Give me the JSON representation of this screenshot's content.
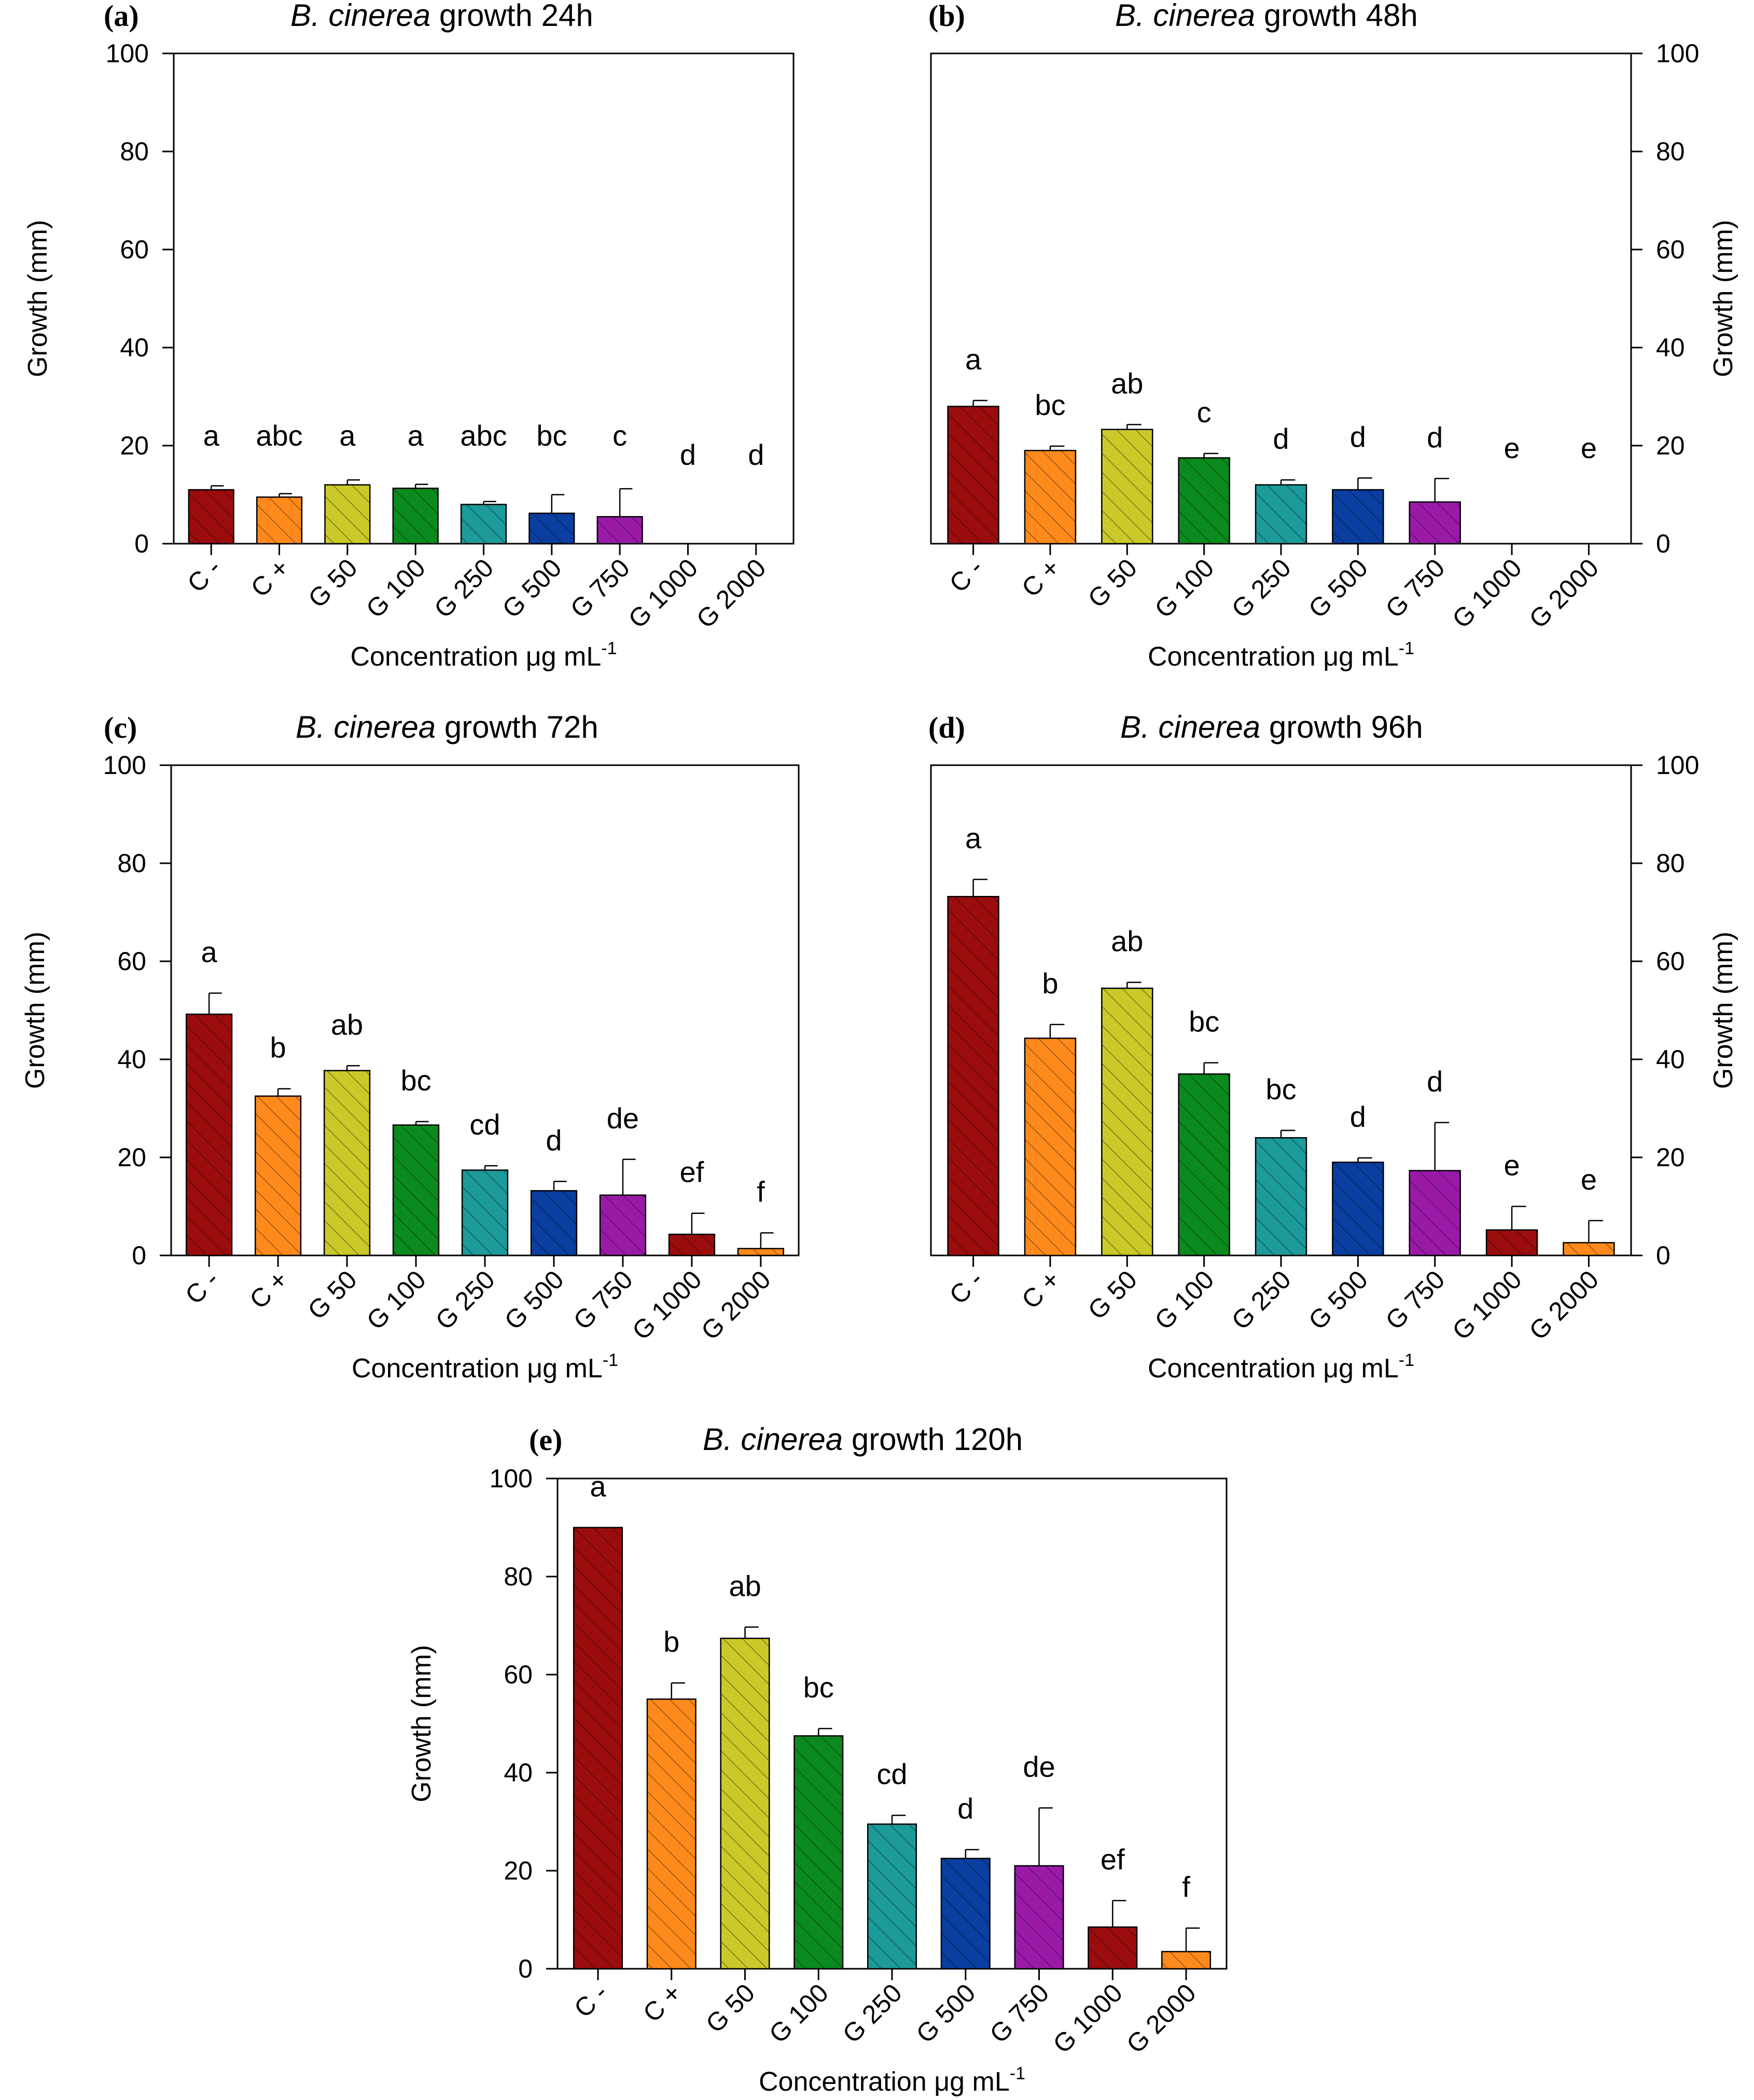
{
  "figure": {
    "caption": ""
  },
  "colors": {
    "C-": "#9b0d0d",
    "C+": "#ff8a1c",
    "G 50": "#c9c92a",
    "G 100": "#0b8a1e",
    "G 250": "#1d9a9a",
    "G 500": "#0a3ea0",
    "G 750": "#9a1aa8",
    "G 1000": "#9b0d0d",
    "G 2000": "#ff8a1c"
  },
  "chart_data": [
    {
      "id": "a",
      "type": "bar",
      "panel_label": "(a)",
      "title_italic": "B. cinerea",
      "title_rest": " growth 24h",
      "xlabel": "Concentration μg mL",
      "xlabel_sup": "-1",
      "ylabel": "Growth (mm)",
      "ylabel_side": "left",
      "ylim": [
        0,
        100
      ],
      "yticks": [
        0,
        20,
        40,
        60,
        80,
        100
      ],
      "categories": [
        "C -",
        "C +",
        "G 50",
        "G 100",
        "G 250",
        "G 500",
        "G 750",
        "G 1000",
        "G 2000"
      ],
      "values": [
        11,
        9.5,
        12,
        11.3,
        8,
        6.2,
        5.5,
        0,
        0
      ],
      "errors": [
        0.8,
        0.7,
        1.0,
        0.8,
        0.6,
        3.8,
        5.7,
        0,
        0
      ],
      "letters": [
        "a",
        "abc",
        "a",
        "a",
        "abc",
        "bc",
        "c",
        "d",
        "d"
      ]
    },
    {
      "id": "b",
      "type": "bar",
      "panel_label": "(b)",
      "title_italic": "B. cinerea",
      "title_rest": " growth 48h",
      "xlabel": "Concentration μg mL",
      "xlabel_sup": "-1",
      "ylabel": "Growth (mm)",
      "ylabel_side": "right",
      "ylim": [
        0,
        100
      ],
      "yticks": [
        0,
        20,
        40,
        60,
        80,
        100
      ],
      "categories": [
        "C -",
        "C +",
        "G 50",
        "G 100",
        "G 250",
        "G 500",
        "G 750",
        "G 1000",
        "G 2000"
      ],
      "values": [
        28,
        19,
        23.3,
        17.5,
        12,
        11,
        8.5,
        0,
        0
      ],
      "errors": [
        1.2,
        0.9,
        1.0,
        0.9,
        1.0,
        2.4,
        4.8,
        0,
        0
      ],
      "letters": [
        "a",
        "bc",
        "ab",
        "c",
        "d",
        "d",
        "d",
        "e",
        "e"
      ]
    },
    {
      "id": "c",
      "type": "bar",
      "panel_label": "(c)",
      "title_italic": "B. cinerea",
      "title_rest": " growth 72h",
      "xlabel": "Concentration μg mL",
      "xlabel_sup": "-1",
      "ylabel": "Growth (mm)",
      "ylabel_side": "left",
      "ylim": [
        0,
        100
      ],
      "yticks": [
        0,
        20,
        40,
        60,
        80,
        100
      ],
      "categories": [
        "C -",
        "C +",
        "G 50",
        "G 100",
        "G 250",
        "G 500",
        "G 750",
        "G 1000",
        "G 2000"
      ],
      "values": [
        49.2,
        32.5,
        37.7,
        26.6,
        17.4,
        13.2,
        12.3,
        4.3,
        1.4
      ],
      "errors": [
        4.3,
        1.5,
        1.0,
        0.7,
        0.9,
        1.9,
        7.3,
        4.3,
        3.2
      ],
      "letters": [
        "a",
        "b",
        "ab",
        "bc",
        "cd",
        "d",
        "de",
        "ef",
        "f"
      ]
    },
    {
      "id": "d",
      "type": "bar",
      "panel_label": "(d)",
      "title_italic": "B. cinerea",
      "title_rest": " growth 96h",
      "xlabel": "Concentration μg mL",
      "xlabel_sup": "-1",
      "ylabel": "Growth (mm)",
      "ylabel_side": "right",
      "ylim": [
        0,
        100
      ],
      "yticks": [
        0,
        20,
        40,
        60,
        80,
        100
      ],
      "categories": [
        "C -",
        "C +",
        "G 50",
        "G 100",
        "G 250",
        "G 500",
        "G 750",
        "G 1000",
        "G 2000"
      ],
      "values": [
        73.2,
        44.3,
        54.5,
        37,
        24,
        19,
        17.3,
        5.2,
        2.6
      ],
      "errors": [
        3.5,
        2.8,
        1.2,
        2.3,
        1.5,
        0.9,
        9.8,
        4.8,
        4.5
      ],
      "letters": [
        "a",
        "b",
        "ab",
        "bc",
        "bc",
        "d",
        "d",
        "e",
        "e"
      ]
    },
    {
      "id": "e",
      "type": "bar",
      "panel_label": "(e)",
      "title_italic": "B. cinerea",
      "title_rest": " growth 120h",
      "xlabel": "Concentration μg mL",
      "xlabel_sup": "-1",
      "ylabel": "Growth (mm)",
      "ylabel_side": "left",
      "ylim": [
        0,
        100
      ],
      "yticks": [
        0,
        20,
        40,
        60,
        80,
        100
      ],
      "categories": [
        "C -",
        "C +",
        "G 50",
        "G 100",
        "G 250",
        "G 500",
        "G 750",
        "G 1000",
        "G 2000"
      ],
      "values": [
        90,
        55,
        67.4,
        47.5,
        29.5,
        22.5,
        21,
        8.5,
        3.5
      ],
      "errors": [
        0,
        3.3,
        2.3,
        1.5,
        1.8,
        1.8,
        11.8,
        5.4,
        4.8
      ],
      "letters": [
        "a",
        "b",
        "ab",
        "bc",
        "cd",
        "d",
        "de",
        "ef",
        "f"
      ]
    }
  ]
}
